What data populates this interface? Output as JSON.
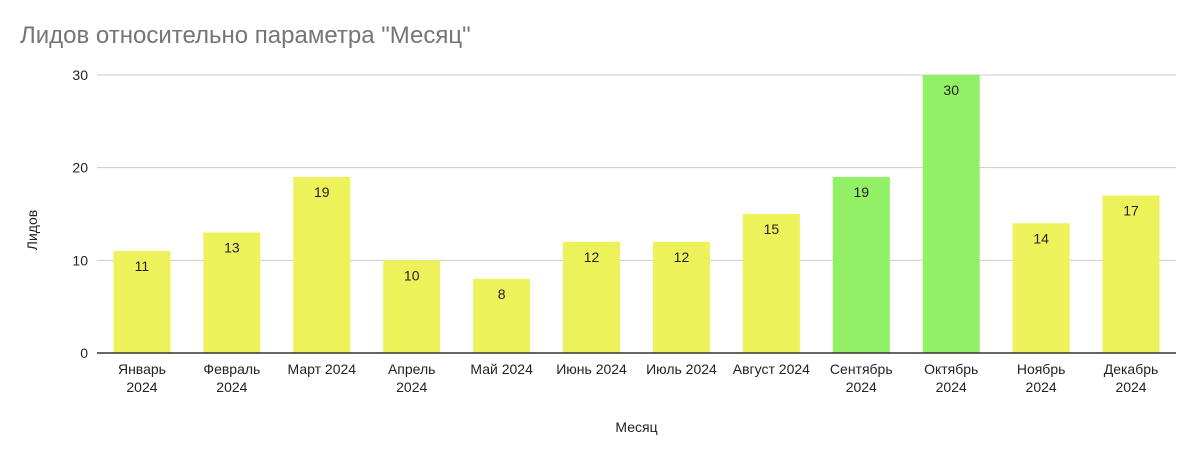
{
  "chart_data": {
    "type": "bar",
    "title": "Лидов относительно параметра \"Месяц\"",
    "xlabel": "Месяц",
    "ylabel": "Лидов",
    "ylim": [
      0,
      30
    ],
    "yticks": [
      0,
      10,
      20,
      30
    ],
    "grid": true,
    "legend": "none",
    "categories": [
      [
        "Январь",
        "2024"
      ],
      [
        "Февраль",
        "2024"
      ],
      [
        "Март 2024"
      ],
      [
        "Апрель",
        "2024"
      ],
      [
        "Май 2024"
      ],
      [
        "Июнь 2024"
      ],
      [
        "Июль 2024"
      ],
      [
        "Август 2024"
      ],
      [
        "Сентябрь",
        "2024"
      ],
      [
        "Октябрь",
        "2024"
      ],
      [
        "Ноябрь",
        "2024"
      ],
      [
        "Декабрь",
        "2024"
      ]
    ],
    "values": [
      11,
      13,
      19,
      10,
      8,
      12,
      12,
      15,
      19,
      30,
      14,
      17
    ],
    "bar_colors": [
      "#eef25a",
      "#eef25a",
      "#eef25a",
      "#eef25a",
      "#eef25a",
      "#eef25a",
      "#eef25a",
      "#eef25a",
      "#92f066",
      "#92f066",
      "#eef25a",
      "#eef25a"
    ],
    "grid_color": "#cccccc",
    "axis_color": "#333333"
  }
}
